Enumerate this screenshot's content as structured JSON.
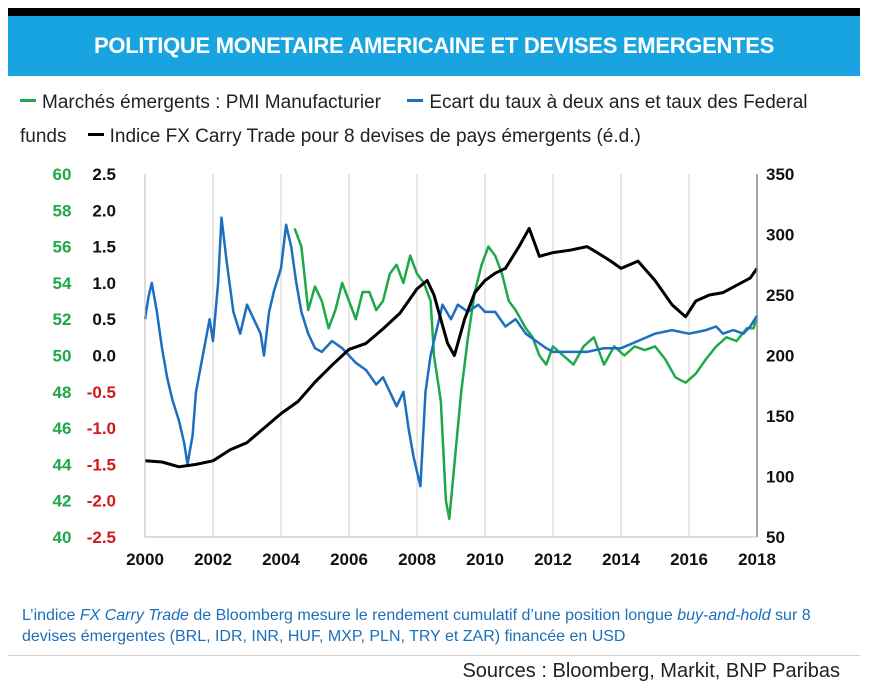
{
  "title": "POLITIQUE MONETAIRE AMERICAINE ET DEVISES EMERGENTES",
  "legend": [
    {
      "label": "Marchés émergents : PMI Manufacturier",
      "color": "#1fa84a"
    },
    {
      "label": "Ecart du taux à deux ans et taux des Federal funds",
      "color": "#1c6fc0"
    },
    {
      "label": "Indice FX Carry Trade pour 8 devises de pays émergents (é.d.)",
      "color": "#000000"
    }
  ],
  "note": {
    "part1": "L’indice ",
    "italic1": "FX Carry Trade",
    "part2": " de Bloomberg mesure le rendement cumulatif d’une position longue ",
    "italic2": "buy-and-hold",
    "part3": " sur 8 devises émergentes (BRL, IDR, INR, HUF, MXP, PLN, TRY et ZAR) financée en USD"
  },
  "sources": "Sources : Bloomberg,  Markit, BNP Paribas",
  "chart_data": {
    "type": "line",
    "xlim": [
      2000,
      2018
    ],
    "x_ticks": [
      "2000",
      "2002",
      "2004",
      "2006",
      "2008",
      "2010",
      "2012",
      "2014",
      "2016",
      "2018"
    ],
    "axes": {
      "left_outer": {
        "ticks": [
          "60",
          "58",
          "56",
          "54",
          "52",
          "50",
          "48",
          "46",
          "44",
          "42",
          "40"
        ],
        "range": [
          40,
          60
        ],
        "color": "#1fa84a"
      },
      "left_inner": {
        "ticks": [
          "2.5",
          "2.0",
          "1.5",
          "1.0",
          "0.5",
          "0.0",
          "-0.5",
          "-1.0",
          "-1.5",
          "-2.0",
          "-2.5"
        ],
        "range": [
          -2.5,
          2.5
        ],
        "pos_color": "#111111",
        "neg_color": "#d0191b"
      },
      "right": {
        "ticks": [
          "350",
          "300",
          "250",
          "200",
          "150",
          "100",
          "50"
        ],
        "range": [
          50,
          350
        ],
        "color": "#111111"
      }
    },
    "grid": "vertical",
    "series": [
      {
        "name": "Marchés émergents : PMI Manufacturier",
        "axis": "left_outer",
        "color": "#1fa84a",
        "points": [
          [
            2004.4,
            57.0
          ],
          [
            2004.6,
            56.0
          ],
          [
            2004.8,
            52.5
          ],
          [
            2005.0,
            53.8
          ],
          [
            2005.2,
            53.0
          ],
          [
            2005.4,
            51.5
          ],
          [
            2005.6,
            52.5
          ],
          [
            2005.8,
            54.0
          ],
          [
            2006.0,
            53.0
          ],
          [
            2006.2,
            52.0
          ],
          [
            2006.4,
            53.5
          ],
          [
            2006.6,
            53.5
          ],
          [
            2006.8,
            52.5
          ],
          [
            2007.0,
            53.0
          ],
          [
            2007.2,
            54.5
          ],
          [
            2007.4,
            55.0
          ],
          [
            2007.6,
            54.0
          ],
          [
            2007.8,
            55.5
          ],
          [
            2008.0,
            54.5
          ],
          [
            2008.2,
            54.0
          ],
          [
            2008.4,
            53.0
          ],
          [
            2008.5,
            50.0
          ],
          [
            2008.7,
            47.5
          ],
          [
            2008.85,
            42.0
          ],
          [
            2008.95,
            41.0
          ],
          [
            2009.1,
            44.0
          ],
          [
            2009.3,
            48.0
          ],
          [
            2009.5,
            51.0
          ],
          [
            2009.7,
            53.5
          ],
          [
            2009.9,
            55.0
          ],
          [
            2010.1,
            56.0
          ],
          [
            2010.3,
            55.5
          ],
          [
            2010.5,
            54.5
          ],
          [
            2010.7,
            53.0
          ],
          [
            2010.9,
            52.5
          ],
          [
            2011.2,
            51.5
          ],
          [
            2011.4,
            51.0
          ],
          [
            2011.6,
            50.0
          ],
          [
            2011.8,
            49.5
          ],
          [
            2012.0,
            50.5
          ],
          [
            2012.3,
            50.0
          ],
          [
            2012.6,
            49.5
          ],
          [
            2012.9,
            50.5
          ],
          [
            2013.2,
            51.0
          ],
          [
            2013.5,
            49.5
          ],
          [
            2013.8,
            50.5
          ],
          [
            2014.1,
            50.0
          ],
          [
            2014.4,
            50.5
          ],
          [
            2014.7,
            50.3
          ],
          [
            2015.0,
            50.5
          ],
          [
            2015.3,
            49.8
          ],
          [
            2015.6,
            48.8
          ],
          [
            2015.9,
            48.5
          ],
          [
            2016.2,
            49.0
          ],
          [
            2016.5,
            49.8
          ],
          [
            2016.8,
            50.5
          ],
          [
            2017.1,
            51.0
          ],
          [
            2017.4,
            50.8
          ],
          [
            2017.7,
            51.5
          ],
          [
            2017.9,
            51.5
          ],
          [
            2018.0,
            52.2
          ]
        ]
      },
      {
        "name": "Ecart du taux à deux ans et taux des Federal funds",
        "axis": "left_inner",
        "color": "#1c6fc0",
        "points": [
          [
            2000.0,
            0.5
          ],
          [
            2000.1,
            0.8
          ],
          [
            2000.2,
            1.0
          ],
          [
            2000.35,
            0.6
          ],
          [
            2000.5,
            0.1
          ],
          [
            2000.65,
            -0.3
          ],
          [
            2000.8,
            -0.6
          ],
          [
            2001.0,
            -0.9
          ],
          [
            2001.15,
            -1.2
          ],
          [
            2001.25,
            -1.5
          ],
          [
            2001.4,
            -1.1
          ],
          [
            2001.5,
            -0.5
          ],
          [
            2001.7,
            0.0
          ],
          [
            2001.9,
            0.5
          ],
          [
            2002.0,
            0.2
          ],
          [
            2002.15,
            1.0
          ],
          [
            2002.25,
            1.9
          ],
          [
            2002.4,
            1.3
          ],
          [
            2002.6,
            0.6
          ],
          [
            2002.8,
            0.3
          ],
          [
            2003.0,
            0.7
          ],
          [
            2003.2,
            0.5
          ],
          [
            2003.4,
            0.3
          ],
          [
            2003.5,
            0.0
          ],
          [
            2003.65,
            0.6
          ],
          [
            2003.8,
            0.9
          ],
          [
            2004.0,
            1.2
          ],
          [
            2004.15,
            1.8
          ],
          [
            2004.3,
            1.5
          ],
          [
            2004.45,
            1.0
          ],
          [
            2004.6,
            0.6
          ],
          [
            2004.8,
            0.3
          ],
          [
            2005.0,
            0.1
          ],
          [
            2005.2,
            0.05
          ],
          [
            2005.5,
            0.2
          ],
          [
            2005.8,
            0.1
          ],
          [
            2006.0,
            0.0
          ],
          [
            2006.2,
            -0.1
          ],
          [
            2006.5,
            -0.2
          ],
          [
            2006.8,
            -0.4
          ],
          [
            2007.0,
            -0.3
          ],
          [
            2007.2,
            -0.5
          ],
          [
            2007.4,
            -0.7
          ],
          [
            2007.6,
            -0.5
          ],
          [
            2007.75,
            -1.0
          ],
          [
            2007.9,
            -1.4
          ],
          [
            2008.1,
            -1.8
          ],
          [
            2008.25,
            -0.5
          ],
          [
            2008.4,
            0.0
          ],
          [
            2008.6,
            0.4
          ],
          [
            2008.75,
            0.7
          ],
          [
            2009.0,
            0.5
          ],
          [
            2009.2,
            0.7
          ],
          [
            2009.5,
            0.6
          ],
          [
            2009.8,
            0.7
          ],
          [
            2010.0,
            0.6
          ],
          [
            2010.3,
            0.6
          ],
          [
            2010.6,
            0.4
          ],
          [
            2010.9,
            0.5
          ],
          [
            2011.2,
            0.3
          ],
          [
            2011.5,
            0.2
          ],
          [
            2011.8,
            0.1
          ],
          [
            2012.0,
            0.05
          ],
          [
            2012.5,
            0.05
          ],
          [
            2013.0,
            0.05
          ],
          [
            2013.5,
            0.1
          ],
          [
            2014.0,
            0.1
          ],
          [
            2014.5,
            0.2
          ],
          [
            2015.0,
            0.3
          ],
          [
            2015.5,
            0.35
          ],
          [
            2016.0,
            0.3
          ],
          [
            2016.5,
            0.35
          ],
          [
            2016.8,
            0.4
          ],
          [
            2017.0,
            0.3
          ],
          [
            2017.3,
            0.35
          ],
          [
            2017.6,
            0.3
          ],
          [
            2017.8,
            0.4
          ],
          [
            2018.0,
            0.55
          ]
        ]
      },
      {
        "name": "Indice FX Carry Trade pour 8 devises de pays émergents (é.d.)",
        "axis": "right",
        "color": "#000000",
        "points": [
          [
            2000.0,
            113
          ],
          [
            2000.5,
            112
          ],
          [
            2001.0,
            108
          ],
          [
            2001.5,
            110
          ],
          [
            2002.0,
            113
          ],
          [
            2002.5,
            122
          ],
          [
            2003.0,
            128
          ],
          [
            2003.5,
            140
          ],
          [
            2004.0,
            152
          ],
          [
            2004.5,
            162
          ],
          [
            2005.0,
            178
          ],
          [
            2005.5,
            192
          ],
          [
            2006.0,
            205
          ],
          [
            2006.5,
            210
          ],
          [
            2007.0,
            222
          ],
          [
            2007.5,
            235
          ],
          [
            2008.0,
            255
          ],
          [
            2008.3,
            262
          ],
          [
            2008.5,
            250
          ],
          [
            2008.7,
            230
          ],
          [
            2008.9,
            210
          ],
          [
            2009.1,
            200
          ],
          [
            2009.4,
            230
          ],
          [
            2009.7,
            252
          ],
          [
            2010.0,
            262
          ],
          [
            2010.3,
            268
          ],
          [
            2010.6,
            272
          ],
          [
            2011.0,
            290
          ],
          [
            2011.3,
            305
          ],
          [
            2011.6,
            282
          ],
          [
            2012.0,
            285
          ],
          [
            2012.5,
            287
          ],
          [
            2013.0,
            290
          ],
          [
            2013.3,
            285
          ],
          [
            2013.7,
            278
          ],
          [
            2014.0,
            272
          ],
          [
            2014.5,
            278
          ],
          [
            2015.0,
            262
          ],
          [
            2015.5,
            242
          ],
          [
            2015.9,
            232
          ],
          [
            2016.2,
            245
          ],
          [
            2016.6,
            250
          ],
          [
            2017.0,
            252
          ],
          [
            2017.4,
            258
          ],
          [
            2017.8,
            264
          ],
          [
            2018.0,
            272
          ]
        ]
      }
    ]
  }
}
